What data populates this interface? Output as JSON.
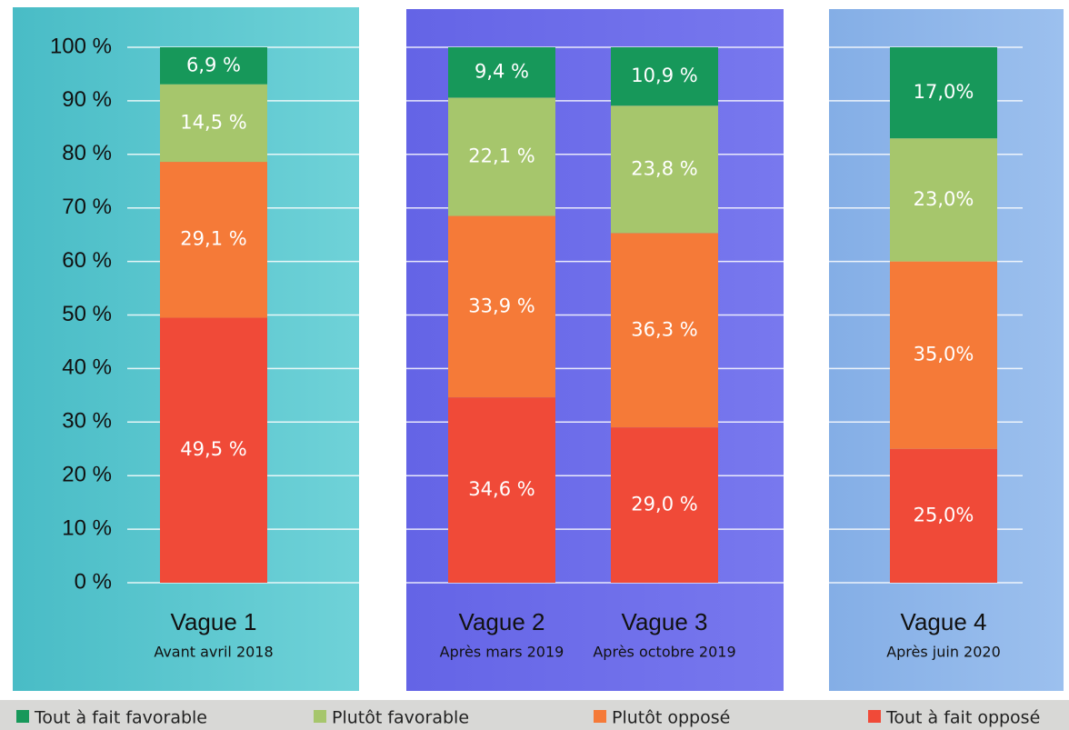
{
  "chart_data": {
    "type": "stacked_bar",
    "categories": [
      "Vague 1",
      "Vague 2",
      "Vague 3",
      "Vague 4"
    ],
    "category_subtitles": [
      "Avant avril 2018",
      "Après mars 2019",
      "Après octobre 2019",
      "Après juin 2020"
    ],
    "series": [
      {
        "name": "Tout à fait opposé",
        "color": "#f04a38",
        "values": [
          49.5,
          34.6,
          29.0,
          25.0
        ],
        "value_labels": [
          "49,5 %",
          "34,6 %",
          "29,0 %",
          "25,0%"
        ]
      },
      {
        "name": "Plutôt opposé",
        "color": "#f57a38",
        "values": [
          29.1,
          33.9,
          36.3,
          35.0
        ],
        "value_labels": [
          "29,1 %",
          "33,9 %",
          "36,3 %",
          "35,0%"
        ]
      },
      {
        "name": "Plutôt favorable",
        "color": "#a6c66c",
        "values": [
          14.5,
          22.1,
          23.8,
          23.0
        ],
        "value_labels": [
          "14,5 %",
          "22,1 %",
          "23,8 %",
          "23,0%"
        ]
      },
      {
        "name": "Tout à fait favorable",
        "color": "#17985a",
        "values": [
          6.9,
          9.4,
          10.9,
          17.0
        ],
        "value_labels": [
          "6,9 %",
          "9,4 %",
          "10,9 %",
          "17,0%"
        ]
      }
    ],
    "ylim": [
      0,
      100
    ],
    "yticks": [
      {
        "value": 0,
        "label": "0 %"
      },
      {
        "value": 10,
        "label": "10 %"
      },
      {
        "value": 20,
        "label": "20 %"
      },
      {
        "value": 30,
        "label": "30 %"
      },
      {
        "value": 40,
        "label": "40 %"
      },
      {
        "value": 50,
        "label": "50 %"
      },
      {
        "value": 60,
        "label": "60 %"
      },
      {
        "value": 70,
        "label": "70 %"
      },
      {
        "value": 80,
        "label": "80 %"
      },
      {
        "value": 90,
        "label": "90 %"
      },
      {
        "value": 100,
        "label": "100 %"
      }
    ],
    "grid": true,
    "legend": "bottom"
  }
}
